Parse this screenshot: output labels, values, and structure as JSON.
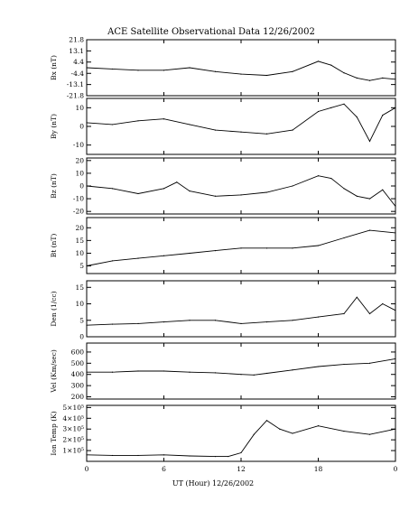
{
  "chart_data": {
    "type": "line",
    "title": "ACE Satellite Observational Data   12/26/2002",
    "x_axis": {
      "label": "UT (Hour)  12/26/2002",
      "range_hours": [
        0,
        24
      ],
      "tick_labels": [
        "0",
        "6",
        "12",
        "18",
        "0"
      ]
    },
    "panels": [
      {
        "ylabel": "Bx (nT)",
        "ylim": [
          -21.8,
          21.8
        ],
        "ytick_labels": [
          "21.8",
          "13.1",
          "4.4",
          "-4.4",
          "-13.1",
          "-21.8"
        ],
        "x": [
          0,
          2,
          4,
          6,
          8,
          10,
          12,
          14,
          16,
          18,
          19,
          20,
          21,
          22,
          23,
          24
        ],
        "y": [
          0,
          -1,
          -2,
          -2,
          0,
          -3,
          -5,
          -6,
          -3,
          5,
          2,
          -4,
          -8,
          -10,
          -8,
          -9
        ]
      },
      {
        "ylabel": "By (nT)",
        "ylim": [
          -15,
          15
        ],
        "ytick_labels": [
          "10",
          "0",
          "-10"
        ],
        "x": [
          0,
          2,
          4,
          6,
          8,
          10,
          12,
          14,
          16,
          18,
          19,
          20,
          21,
          22,
          23,
          24
        ],
        "y": [
          2,
          1,
          3,
          4,
          1,
          -2,
          -3,
          -4,
          -2,
          8,
          10,
          12,
          5,
          -8,
          6,
          10
        ]
      },
      {
        "ylabel": "Bz (nT)",
        "ylim": [
          -22,
          22
        ],
        "ytick_labels": [
          "20",
          "10",
          "0",
          "-10",
          "-20"
        ],
        "x": [
          0,
          2,
          4,
          6,
          7,
          8,
          10,
          12,
          14,
          16,
          18,
          19,
          20,
          21,
          22,
          23,
          24
        ],
        "y": [
          0,
          -2,
          -6,
          -2,
          3,
          -4,
          -8,
          -7,
          -5,
          0,
          8,
          6,
          -2,
          -8,
          -10,
          -3,
          -16
        ]
      },
      {
        "ylabel": "Bt (nT)",
        "ylim": [
          2,
          24
        ],
        "ytick_labels": [
          "20",
          "15",
          "10",
          "5"
        ],
        "x": [
          0,
          2,
          4,
          6,
          8,
          10,
          12,
          14,
          16,
          18,
          20,
          22,
          24
        ],
        "y": [
          5,
          7,
          8,
          9,
          10,
          11,
          12,
          12,
          12,
          13,
          16,
          19,
          18
        ]
      },
      {
        "ylabel": "Den (1/cc)",
        "ylim": [
          0,
          17
        ],
        "ytick_labels": [
          "15",
          "10",
          "5",
          "0"
        ],
        "x": [
          0,
          2,
          4,
          6,
          8,
          10,
          12,
          14,
          16,
          18,
          20,
          21,
          22,
          23,
          24
        ],
        "y": [
          3.5,
          3.8,
          4,
          4.5,
          5,
          5,
          4,
          4.5,
          5,
          6,
          7,
          12,
          7,
          10,
          8
        ]
      },
      {
        "ylabel": "Vel (Km/sec)",
        "ylim": [
          180,
          680
        ],
        "ytick_labels": [
          "600",
          "500",
          "400",
          "300",
          "200"
        ],
        "x": [
          0,
          2,
          4,
          6,
          8,
          10,
          12,
          13,
          14,
          16,
          18,
          20,
          22,
          24
        ],
        "y": [
          420,
          420,
          430,
          430,
          420,
          415,
          400,
          395,
          410,
          440,
          470,
          490,
          500,
          540
        ]
      },
      {
        "ylabel": "Ion Temp (K)",
        "ylim": [
          0,
          520000
        ],
        "ytick_labels": [
          "5×10⁵",
          "4×10⁵",
          "3×10⁵",
          "2×10⁵",
          "1×10⁵"
        ],
        "x": [
          0,
          2,
          4,
          6,
          8,
          10,
          11,
          12,
          13,
          14,
          15,
          16,
          18,
          20,
          22,
          24
        ],
        "y": [
          60000,
          55000,
          55000,
          60000,
          50000,
          45000,
          45000,
          80000,
          250000,
          380000,
          300000,
          260000,
          330000,
          280000,
          250000,
          300000
        ]
      }
    ]
  }
}
